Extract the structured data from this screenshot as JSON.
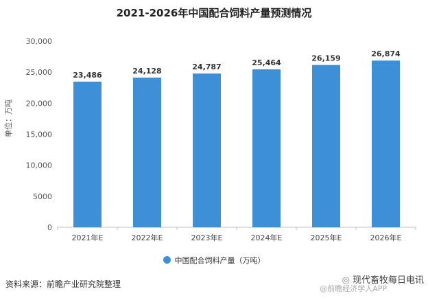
{
  "chart_data": {
    "type": "bar",
    "title": "2021-2026年中国配合饲料产量预测情况",
    "ylabel": "单位：万吨",
    "categories": [
      "2021年E",
      "2022年E",
      "2023年E",
      "2024年E",
      "2025年E",
      "2026年E"
    ],
    "series": [
      {
        "name": "中国配合饲料产量（万吨）",
        "values": [
          23486,
          24128,
          24787,
          25464,
          26159,
          26874
        ]
      }
    ],
    "data_labels": [
      "23,486",
      "24,128",
      "24,787",
      "25,464",
      "26,159",
      "26,874"
    ],
    "yticks": [
      "0",
      "5000",
      "10,000",
      "15,000",
      "20,000",
      "25,000",
      "30,000"
    ],
    "ylim": [
      0,
      30000
    ],
    "grid": false,
    "legend": "bottom",
    "color": "#3d8fd6"
  },
  "source": "资料来源：前瞻产业研究院整理",
  "watermark": {
    "main": "现代畜牧每日电讯",
    "sub": "@前瞻经济学人APP"
  }
}
